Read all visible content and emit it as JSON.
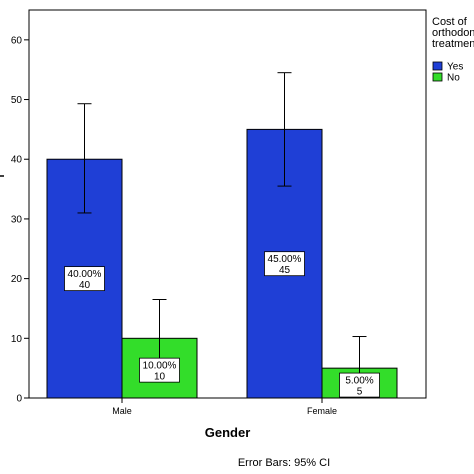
{
  "chart_data": {
    "type": "bar",
    "title": "",
    "xlabel": "Gender",
    "ylabel": "",
    "categories": [
      "Male",
      "Female"
    ],
    "ylim": [
      0,
      65
    ],
    "yticks": [
      0,
      10,
      20,
      30,
      40,
      50,
      60
    ],
    "grid": false,
    "legend": {
      "title_lines": [
        "Cost of",
        "orthodont",
        "treatmen"
      ],
      "placement": "right"
    },
    "series": [
      {
        "name": "Yes",
        "color": "#1f3fd6",
        "values": [
          40,
          45
        ],
        "error_low": [
          31,
          35.5
        ],
        "error_high": [
          49.3,
          54.5
        ],
        "label_pct": [
          "40.00%",
          "45.00%"
        ],
        "label_count": [
          "40",
          "45"
        ]
      },
      {
        "name": "No",
        "color": "#33dd2a",
        "values": [
          10,
          5
        ],
        "error_low": [
          3.5,
          0.5
        ],
        "error_high": [
          16.5,
          10.3
        ],
        "label_pct": [
          "10.00%",
          "5.00%"
        ],
        "label_count": [
          "10",
          "5"
        ]
      }
    ],
    "footnote": "Error Bars: 95% CI"
  }
}
